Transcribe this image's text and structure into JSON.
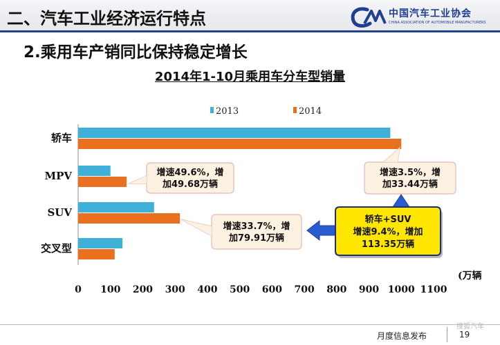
{
  "header": {
    "section_title": "二、汽车工业经济运行特点",
    "logo_name": "中国汽车工业协会",
    "logo_sub": "CHINA ASSOCIATION OF AUTOMOBILE MANUFACTURERS",
    "logo_icon": "caam-logo-icon"
  },
  "subtitle": "2.乘用车产销同比保持稳定增长",
  "chart_data": {
    "type": "bar",
    "orientation": "horizontal",
    "title": "2014年1-10月乘用车分车型销量",
    "categories": [
      "轿车",
      "MPV",
      "SUV",
      "交叉型"
    ],
    "series": [
      {
        "name": "2013",
        "color": "#3fb0d8",
        "values": [
          966,
          100,
          235,
          137
        ]
      },
      {
        "name": "2014",
        "color": "#e8701e",
        "values": [
          1000,
          150,
          315,
          113
        ]
      }
    ],
    "x_ticks": [
      "0",
      "100",
      "200",
      "300",
      "400",
      "500",
      "600",
      "700",
      "800",
      "900",
      "1000",
      "1100"
    ],
    "xlim": [
      0,
      1100
    ],
    "unit": "(万辆",
    "legend_position": "top",
    "grid": false
  },
  "callouts": {
    "mpv": "增速49.6%，增|加49.68万辆",
    "suv": "增速33.7%，增|加79.91万辆",
    "sedan": "增速3.5%，增|加33.44万辆",
    "sedan_suv": "轿车+SUV|增速9.4%，增加|113.35万辆"
  },
  "colors": {
    "accent": "#1f3f8f",
    "callout_fill": "#fdf1e2",
    "callout_border": "#e2b8b8",
    "highlight_fill": "#ffe600",
    "highlight_border": "#1c2f7a",
    "arrow": "#2a5bd1"
  },
  "footer": {
    "label": "月度信息发布",
    "page": "19",
    "watermark": "搜狐汽车"
  }
}
